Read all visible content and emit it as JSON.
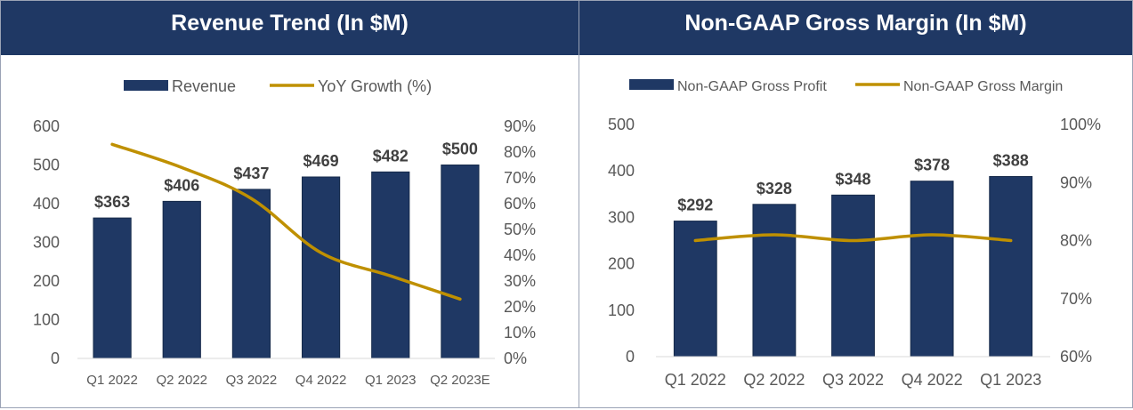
{
  "colors": {
    "header_bg": "#1f3864",
    "bar": "#1f3864",
    "line": "#bf9000"
  },
  "chart_data": [
    {
      "type": "bar",
      "title": "Revenue Trend (In $M)",
      "categories": [
        "Q1 2022",
        "Q2 2022",
        "Q3 2022",
        "Q4 2022",
        "Q1 2023",
        "Q2 2023E"
      ],
      "series": [
        {
          "name": "Revenue",
          "type": "bar",
          "axis": "left",
          "values": [
            363,
            406,
            437,
            469,
            482,
            500
          ]
        },
        {
          "name": "YoY Growth (%)",
          "type": "line",
          "axis": "right",
          "values": [
            83,
            74,
            62,
            41,
            32,
            23
          ]
        }
      ],
      "data_labels": [
        "$363",
        "$406",
        "$437",
        "$469",
        "$482",
        "$500"
      ],
      "ylim": [
        0,
        600
      ],
      "y_ticks": [
        "0",
        "100",
        "200",
        "300",
        "400",
        "500",
        "600"
      ],
      "y2lim": [
        0,
        90
      ],
      "y2_ticks": [
        "0%",
        "10%",
        "20%",
        "30%",
        "40%",
        "50%",
        "60%",
        "70%",
        "80%",
        "90%"
      ],
      "legend": "top"
    },
    {
      "type": "bar",
      "title": "Non-GAAP Gross Margin (In $M)",
      "categories": [
        "Q1 2022",
        "Q2 2022",
        "Q3 2022",
        "Q4 2022",
        "Q1 2023"
      ],
      "series": [
        {
          "name": "Non-GAAP Gross Profit",
          "type": "bar",
          "axis": "left",
          "values": [
            292,
            328,
            348,
            378,
            388
          ]
        },
        {
          "name": "Non-GAAP Gross Margin",
          "type": "line",
          "axis": "right",
          "values": [
            80,
            81,
            80,
            81,
            80
          ]
        }
      ],
      "data_labels": [
        "$292",
        "$328",
        "$348",
        "$378",
        "$388"
      ],
      "ylim": [
        0,
        500
      ],
      "y_ticks": [
        "0",
        "100",
        "200",
        "300",
        "400",
        "500"
      ],
      "y2lim": [
        60,
        100
      ],
      "y2_ticks": [
        "60%",
        "70%",
        "80%",
        "90%",
        "100%"
      ],
      "legend": "top"
    }
  ]
}
